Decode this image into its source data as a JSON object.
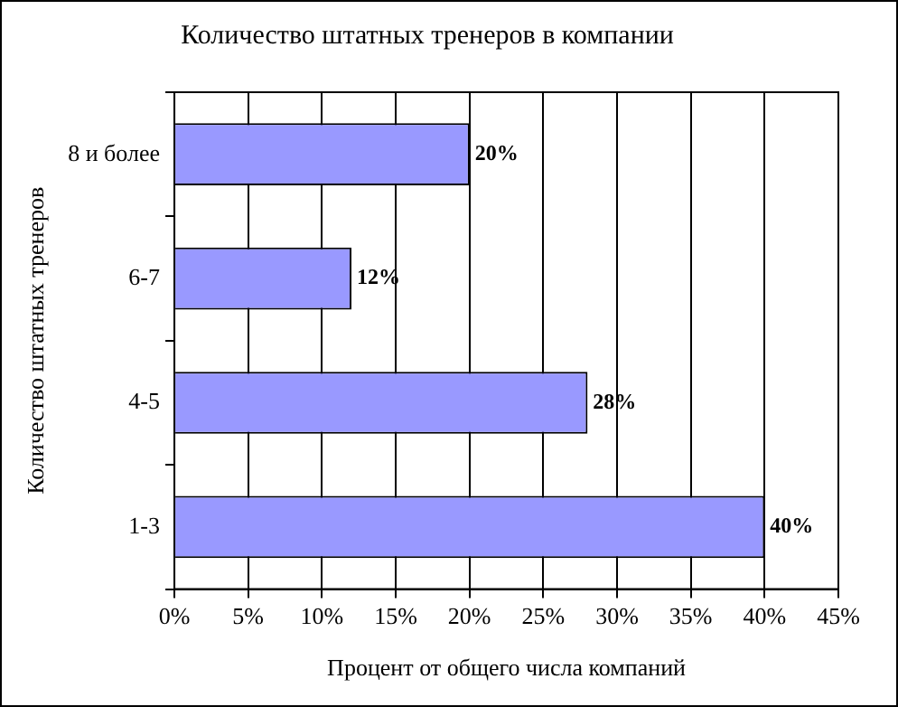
{
  "chart_data": {
    "type": "bar",
    "orientation": "horizontal",
    "title": "Количество штатных тренеров в компании",
    "xlabel": "Процент от общего числа компаний",
    "ylabel": "Количество штатных тренеров",
    "categories": [
      "8 и более",
      "6-7",
      "4-5",
      "1-3"
    ],
    "values": [
      20,
      12,
      28,
      40
    ],
    "value_labels": [
      "20%",
      "12%",
      "28%",
      "40%"
    ],
    "color": "#9999ff",
    "xlim": [
      0,
      45
    ],
    "xticks": [
      {
        "value": 0,
        "label": "0%"
      },
      {
        "value": 5,
        "label": "5%"
      },
      {
        "value": 10,
        "label": "10%"
      },
      {
        "value": 15,
        "label": "15%"
      },
      {
        "value": 20,
        "label": "20%"
      },
      {
        "value": 25,
        "label": "25%"
      },
      {
        "value": 30,
        "label": "30%"
      },
      {
        "value": 35,
        "label": "35%"
      },
      {
        "value": 40,
        "label": "40%"
      },
      {
        "value": 45,
        "label": "45%"
      }
    ],
    "grid": "x",
    "legend": false
  }
}
